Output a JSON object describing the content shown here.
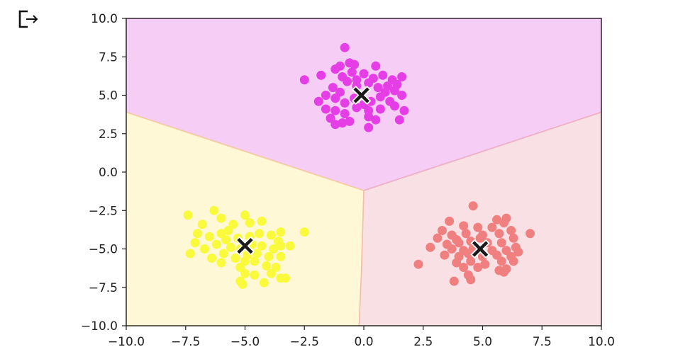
{
  "output_prompt": {
    "icon": "output-cell-icon"
  },
  "chart_data": {
    "type": "scatter",
    "title": "",
    "xlabel": "",
    "ylabel": "",
    "xlim": [
      -10.0,
      10.0
    ],
    "ylim": [
      -10.0,
      10.0
    ],
    "xticks": [
      -10.0,
      -7.5,
      -5.0,
      -2.5,
      0.0,
      2.5,
      5.0,
      7.5,
      10.0
    ],
    "yticks": [
      10.0,
      7.5,
      5.0,
      2.5,
      0.0,
      -2.5,
      -5.0,
      -7.5,
      -10.0
    ],
    "xtick_labels": [
      "−10.0",
      "−7.5",
      "−5.0",
      "−2.5",
      "0.0",
      "2.5",
      "5.0",
      "7.5",
      "10.0"
    ],
    "ytick_labels": [
      "10.0",
      "7.5",
      "5.0",
      "2.5",
      "0.0",
      "−2.5",
      "−5.0",
      "−7.5",
      "−10.0"
    ],
    "grid": false,
    "regions": [
      {
        "cluster": 0,
        "color": "#f5cdf5",
        "boundary_color": "#e891e8",
        "polygon": [
          [
            -10,
            10
          ],
          [
            10,
            10
          ],
          [
            10,
            3.9
          ],
          [
            0,
            -1.2
          ],
          [
            -10,
            3.9
          ]
        ]
      },
      {
        "cluster": 1,
        "color": "#fff8d6",
        "boundary_color": "#f6d98a",
        "polygon": [
          [
            -10,
            3.9
          ],
          [
            0,
            -1.2
          ],
          [
            -0.1,
            -6.5
          ],
          [
            -0.2,
            -10
          ],
          [
            -10,
            -10
          ]
        ]
      },
      {
        "cluster": 2,
        "color": "#f8e0e5",
        "boundary_color": "#f0b5b5",
        "polygon": [
          [
            0,
            -1.2
          ],
          [
            10,
            3.9
          ],
          [
            10,
            -10
          ],
          [
            -0.2,
            -10
          ],
          [
            -0.1,
            -6.5
          ]
        ]
      }
    ],
    "series": [
      {
        "cluster": 0,
        "color": "#e63ee6",
        "points": [
          [
            -0.8,
            8.1
          ],
          [
            -1.0,
            6.9
          ],
          [
            -0.6,
            7.1
          ],
          [
            -0.4,
            7.0
          ],
          [
            0.5,
            6.9
          ],
          [
            -2.5,
            6.0
          ],
          [
            -1.8,
            6.3
          ],
          [
            -1.2,
            6.7
          ],
          [
            -0.9,
            6.2
          ],
          [
            -0.5,
            6.5
          ],
          [
            0.0,
            6.4
          ],
          [
            0.4,
            6.1
          ],
          [
            0.8,
            6.3
          ],
          [
            1.2,
            6.0
          ],
          [
            1.6,
            6.2
          ],
          [
            1.4,
            5.7
          ],
          [
            1.0,
            5.6
          ],
          [
            0.6,
            5.5
          ],
          [
            0.2,
            5.8
          ],
          [
            -0.3,
            5.6
          ],
          [
            -0.7,
            5.9
          ],
          [
            -1.3,
            5.5
          ],
          [
            -1.6,
            5.0
          ],
          [
            -1.9,
            4.6
          ],
          [
            -1.2,
            4.8
          ],
          [
            -0.8,
            4.5
          ],
          [
            -0.4,
            4.8
          ],
          [
            0.3,
            4.6
          ],
          [
            0.7,
            4.9
          ],
          [
            1.1,
            4.6
          ],
          [
            1.6,
            5.0
          ],
          [
            1.3,
            5.3
          ],
          [
            0.9,
            5.2
          ],
          [
            -1.0,
            5.2
          ],
          [
            -1.6,
            4.1
          ],
          [
            -1.2,
            4.0
          ],
          [
            -0.8,
            3.8
          ],
          [
            -0.3,
            4.2
          ],
          [
            0.2,
            4.0
          ],
          [
            0.7,
            4.1
          ],
          [
            1.3,
            4.3
          ],
          [
            1.7,
            4.0
          ],
          [
            -1.4,
            3.5
          ],
          [
            -1.2,
            3.1
          ],
          [
            -0.6,
            3.3
          ],
          [
            0.2,
            3.6
          ],
          [
            0.5,
            3.4
          ],
          [
            0.2,
            2.9
          ],
          [
            1.5,
            3.4
          ],
          [
            -0.3,
            6.0
          ],
          [
            0.0,
            4.4
          ],
          [
            -0.9,
            3.2
          ]
        ]
      },
      {
        "cluster": 1,
        "color": "#fafa3c",
        "points": [
          [
            -7.4,
            -2.8
          ],
          [
            -6.3,
            -2.5
          ],
          [
            -5.0,
            -2.8
          ],
          [
            -6.8,
            -3.4
          ],
          [
            -6.0,
            -3.0
          ],
          [
            -5.5,
            -3.4
          ],
          [
            -4.8,
            -3.3
          ],
          [
            -4.3,
            -3.2
          ],
          [
            -3.5,
            -3.9
          ],
          [
            -2.5,
            -3.9
          ],
          [
            -7.0,
            -4.0
          ],
          [
            -6.5,
            -4.2
          ],
          [
            -6.0,
            -4.0
          ],
          [
            -5.7,
            -3.8
          ],
          [
            -5.3,
            -4.3
          ],
          [
            -4.8,
            -4.2
          ],
          [
            -4.4,
            -4.0
          ],
          [
            -3.9,
            -4.1
          ],
          [
            -3.6,
            -4.5
          ],
          [
            -7.1,
            -4.6
          ],
          [
            -6.7,
            -5.0
          ],
          [
            -6.2,
            -4.7
          ],
          [
            -5.6,
            -4.9
          ],
          [
            -5.2,
            -5.0
          ],
          [
            -4.7,
            -4.7
          ],
          [
            -4.3,
            -4.8
          ],
          [
            -3.8,
            -5.0
          ],
          [
            -3.5,
            -4.8
          ],
          [
            -3.1,
            -4.8
          ],
          [
            -7.3,
            -5.3
          ],
          [
            -6.4,
            -5.6
          ],
          [
            -5.9,
            -5.3
          ],
          [
            -5.4,
            -5.6
          ],
          [
            -4.9,
            -5.4
          ],
          [
            -4.5,
            -5.3
          ],
          [
            -4.0,
            -5.5
          ],
          [
            -3.5,
            -5.5
          ],
          [
            -6.0,
            -5.9
          ],
          [
            -5.0,
            -5.8
          ],
          [
            -4.6,
            -5.8
          ],
          [
            -4.1,
            -6.1
          ],
          [
            -3.7,
            -6.2
          ],
          [
            -5.2,
            -6.2
          ],
          [
            -5.0,
            -6.6
          ],
          [
            -4.6,
            -6.7
          ],
          [
            -3.9,
            -6.6
          ],
          [
            -3.5,
            -6.9
          ],
          [
            -3.3,
            -6.9
          ],
          [
            -4.2,
            -7.2
          ],
          [
            -5.1,
            -7.3
          ],
          [
            -5.2,
            -7.1
          ],
          [
            -5.8,
            -4.4
          ]
        ]
      },
      {
        "cluster": 2,
        "color": "#f08080",
        "points": [
          [
            4.6,
            -2.2
          ],
          [
            3.6,
            -3.2
          ],
          [
            5.6,
            -3.1
          ],
          [
            5.9,
            -3.3
          ],
          [
            6.0,
            -3.0
          ],
          [
            3.3,
            -3.8
          ],
          [
            4.2,
            -3.5
          ],
          [
            4.8,
            -3.6
          ],
          [
            5.4,
            -3.6
          ],
          [
            6.2,
            -3.8
          ],
          [
            3.1,
            -4.3
          ],
          [
            3.7,
            -4.1
          ],
          [
            4.3,
            -4.0
          ],
          [
            5.0,
            -4.1
          ],
          [
            5.7,
            -4.0
          ],
          [
            6.3,
            -4.3
          ],
          [
            7.0,
            -4.0
          ],
          [
            3.5,
            -4.7
          ],
          [
            4.0,
            -4.6
          ],
          [
            4.5,
            -4.5
          ],
          [
            5.2,
            -4.6
          ],
          [
            5.8,
            -4.6
          ],
          [
            6.4,
            -4.9
          ],
          [
            2.8,
            -4.9
          ],
          [
            3.7,
            -5.0
          ],
          [
            4.2,
            -5.1
          ],
          [
            4.6,
            -5.0
          ],
          [
            5.4,
            -5.1
          ],
          [
            6.0,
            -5.1
          ],
          [
            6.5,
            -5.2
          ],
          [
            3.4,
            -5.4
          ],
          [
            4.0,
            -5.5
          ],
          [
            4.4,
            -5.3
          ],
          [
            5.0,
            -5.5
          ],
          [
            5.6,
            -5.4
          ],
          [
            6.2,
            -5.5
          ],
          [
            3.9,
            -5.9
          ],
          [
            4.5,
            -5.8
          ],
          [
            5.1,
            -6.0
          ],
          [
            5.8,
            -5.8
          ],
          [
            6.3,
            -5.8
          ],
          [
            4.2,
            -6.2
          ],
          [
            4.8,
            -6.2
          ],
          [
            5.7,
            -6.4
          ],
          [
            6.0,
            -6.3
          ],
          [
            2.3,
            -6.0
          ],
          [
            4.4,
            -6.7
          ],
          [
            3.8,
            -7.1
          ],
          [
            4.5,
            -7.0
          ],
          [
            5.9,
            -6.5
          ],
          [
            4.9,
            -4.3
          ],
          [
            3.9,
            -4.4
          ]
        ]
      }
    ],
    "centroids": [
      {
        "cluster": 0,
        "x": -0.1,
        "y": 5.0,
        "marker": "X",
        "color": "#1a1a1a"
      },
      {
        "cluster": 1,
        "x": -5.0,
        "y": -4.8,
        "marker": "X",
        "color": "#1a1a1a"
      },
      {
        "cluster": 2,
        "x": 4.9,
        "y": -5.0,
        "marker": "X",
        "color": "#1a1a1a"
      }
    ]
  }
}
